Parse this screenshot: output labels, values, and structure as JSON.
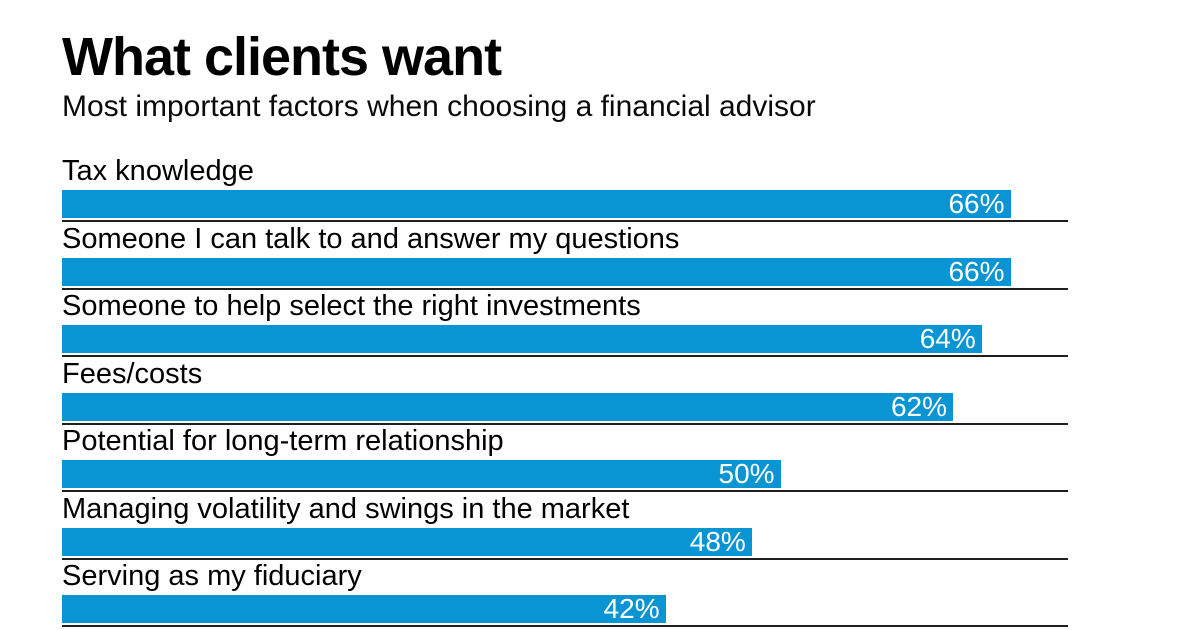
{
  "chart": {
    "title": "What clients want",
    "subtitle": "Most important factors when choosing a financial advisor",
    "bar_color": "#0994d3",
    "axis_max": 70,
    "items": [
      {
        "label": "Tax knowledge",
        "value": 66,
        "value_label": "66%"
      },
      {
        "label": "Someone I can talk to and answer my questions",
        "value": 66,
        "value_label": "66%"
      },
      {
        "label": "Someone to help select the right investments",
        "value": 64,
        "value_label": "64%"
      },
      {
        "label": "Fees/costs",
        "value": 62,
        "value_label": "62%"
      },
      {
        "label": "Potential for long-term relationship",
        "value": 50,
        "value_label": "50%"
      },
      {
        "label": "Managing volatility and swings in the market",
        "value": 48,
        "value_label": "48%"
      },
      {
        "label": "Serving as my fiduciary",
        "value": 42,
        "value_label": "42%"
      }
    ]
  },
  "chart_data": {
    "type": "bar",
    "orientation": "horizontal",
    "title": "What clients want",
    "subtitle": "Most important factors when choosing a financial advisor",
    "categories": [
      "Tax knowledge",
      "Someone I can talk to and answer my questions",
      "Someone to help select the right investments",
      "Fees/costs",
      "Potential for long-term relationship",
      "Managing volatility and swings in the market",
      "Serving as my fiduciary"
    ],
    "values": [
      66,
      66,
      64,
      62,
      50,
      48,
      42
    ],
    "unit": "%",
    "xlim": [
      0,
      70
    ],
    "grid": false,
    "legend": false,
    "bar_color": "#0994d3",
    "value_labels_position": "inside-end",
    "value_labels_color": "#ffffff"
  }
}
